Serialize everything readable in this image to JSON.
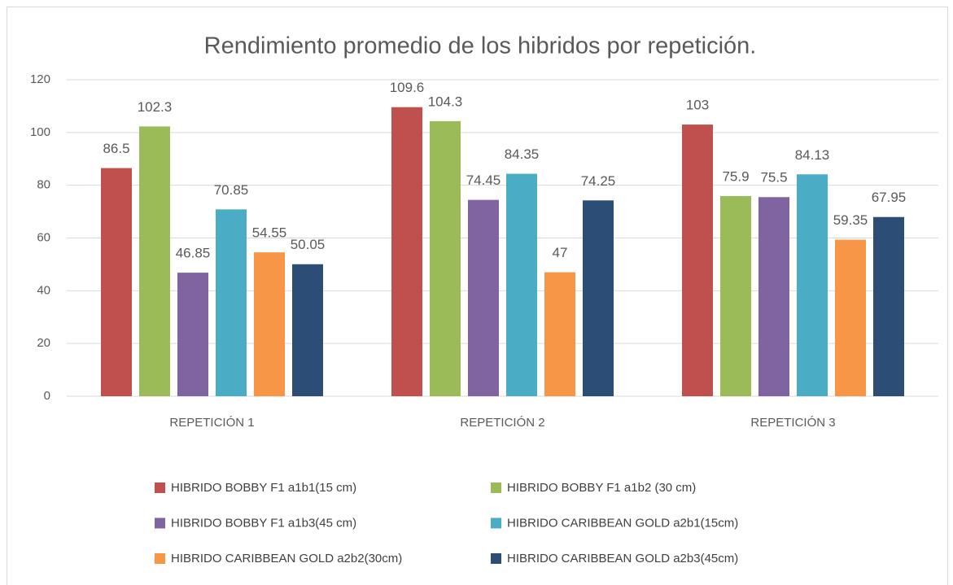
{
  "chart_data": {
    "type": "bar",
    "title": "Rendimiento promedio de los hibridos por repetición.",
    "categories": [
      "REPETICIÓN 1",
      "REPETICIÓN 2",
      "REPETICIÓN 3"
    ],
    "series": [
      {
        "name": "HIBRIDO BOBBY F1 a1b1(15 cm)",
        "color": "#c0504d",
        "values": [
          86.5,
          109.6,
          103
        ]
      },
      {
        "name": "HIBRIDO BOBBY F1 a1b2 (30 cm)",
        "color": "#9bbb59",
        "values": [
          102.3,
          104.3,
          75.9
        ]
      },
      {
        "name": "HIBRIDO BOBBY F1 a1b3(45 cm)",
        "color": "#8064a2",
        "values": [
          46.85,
          74.45,
          75.5
        ]
      },
      {
        "name": "HIBRIDO CARIBBEAN GOLD a2b1(15cm)",
        "color": "#4bacc6",
        "values": [
          70.85,
          84.35,
          84.13
        ]
      },
      {
        "name": "HIBRIDO CARIBBEAN GOLD a2b2(30cm)",
        "color": "#f79646",
        "values": [
          54.55,
          47,
          59.35
        ]
      },
      {
        "name": "HIBRIDO CARIBBEAN GOLD a2b3(45cm)",
        "color": "#2c4d75",
        "values": [
          50.05,
          74.25,
          67.95
        ]
      }
    ],
    "ylim": [
      0,
      120
    ],
    "yticks": [
      0,
      20,
      40,
      60,
      80,
      100,
      120
    ],
    "grid": true,
    "legend": "bottom"
  }
}
